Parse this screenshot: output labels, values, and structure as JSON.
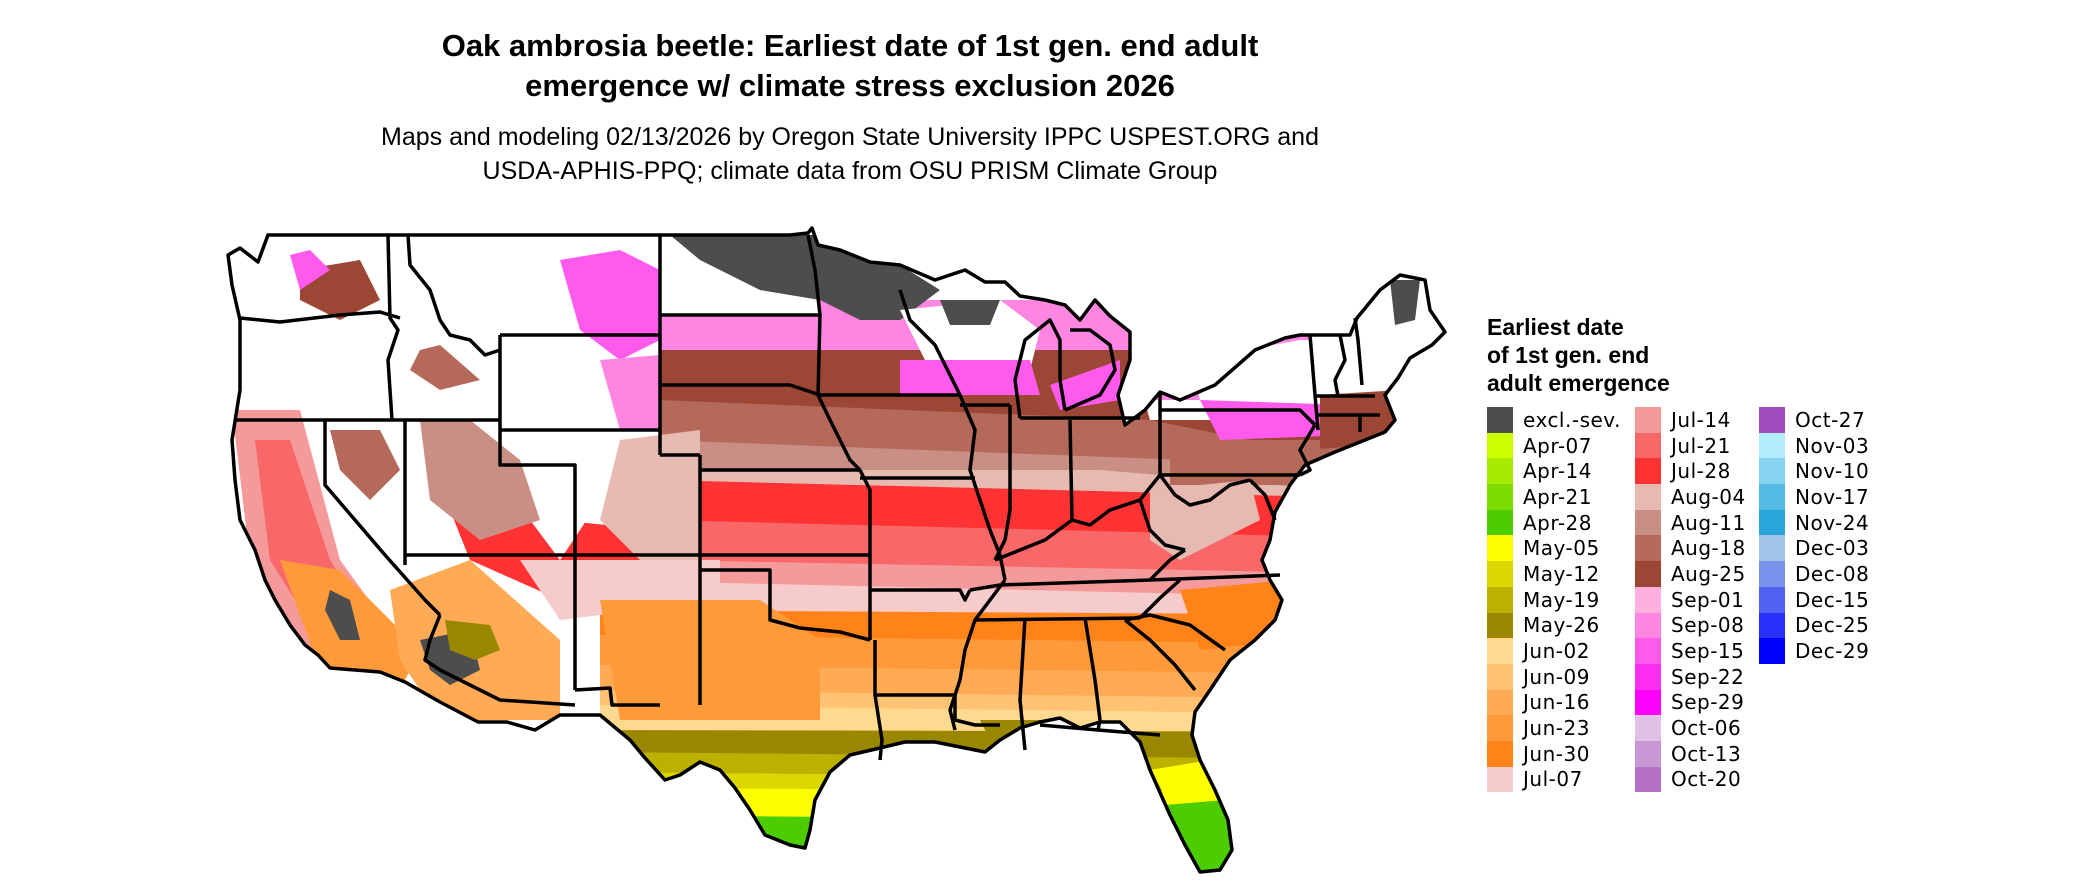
{
  "title": {
    "line1": "Oak ambrosia beetle: Earliest date of 1st gen. end adult",
    "line2": "emergence w/ climate stress exclusion 2026"
  },
  "subtitle": {
    "line1": "Maps and modeling 02/13/2026 by Oregon State University IPPC USPEST.ORG and",
    "line2": "USDA-APHIS-PPQ; climate data from OSU PRISM Climate Group"
  },
  "legend": {
    "title_lines": [
      "Earliest date",
      "of 1st gen. end",
      "adult emergence"
    ],
    "columns": [
      [
        {
          "label": "excl.-sev.",
          "color": "#4d4d4d"
        },
        {
          "label": "Apr-07",
          "color": "#ccff00"
        },
        {
          "label": "Apr-14",
          "color": "#a6ec00"
        },
        {
          "label": "Apr-21",
          "color": "#7fdc00"
        },
        {
          "label": "Apr-28",
          "color": "#4ccd00"
        },
        {
          "label": "May-05",
          "color": "#ffff00"
        },
        {
          "label": "May-12",
          "color": "#dcd700"
        },
        {
          "label": "May-19",
          "color": "#bdb100"
        },
        {
          "label": "May-26",
          "color": "#9a8700"
        },
        {
          "label": "Jun-02",
          "color": "#ffd98f"
        },
        {
          "label": "Jun-09",
          "color": "#ffc373"
        },
        {
          "label": "Jun-16",
          "color": "#ffab55"
        },
        {
          "label": "Jun-23",
          "color": "#ff9a3a"
        },
        {
          "label": "Jun-30",
          "color": "#ff8319"
        },
        {
          "label": "Jul-07",
          "color": "#f5cbcb"
        }
      ],
      [
        {
          "label": "Jul-14",
          "color": "#f59a9a"
        },
        {
          "label": "Jul-21",
          "color": "#f96868"
        },
        {
          "label": "Jul-28",
          "color": "#ff3333"
        },
        {
          "label": "Aug-04",
          "color": "#e6b9b1"
        },
        {
          "label": "Aug-11",
          "color": "#c98f84"
        },
        {
          "label": "Aug-18",
          "color": "#b4695b"
        },
        {
          "label": "Aug-25",
          "color": "#9c4736"
        },
        {
          "label": "Sep-01",
          "color": "#ffb0de"
        },
        {
          "label": "Sep-08",
          "color": "#ff85e3"
        },
        {
          "label": "Sep-15",
          "color": "#ff5aeb"
        },
        {
          "label": "Sep-22",
          "color": "#ff2ef0"
        },
        {
          "label": "Sep-29",
          "color": "#ff00ff"
        },
        {
          "label": "Oct-06",
          "color": "#e0c1e6"
        },
        {
          "label": "Oct-13",
          "color": "#c998d4"
        },
        {
          "label": "Oct-20",
          "color": "#b572c5"
        }
      ],
      [
        {
          "label": "Oct-27",
          "color": "#a04bbb"
        },
        {
          "label": "Nov-03",
          "color": "#b4ecfc"
        },
        {
          "label": "Nov-10",
          "color": "#85d3f1"
        },
        {
          "label": "Nov-17",
          "color": "#57bce5"
        },
        {
          "label": "Nov-24",
          "color": "#28a6dc"
        },
        {
          "label": "Dec-03",
          "color": "#a1c3e9"
        },
        {
          "label": "Dec-08",
          "color": "#7a92ec"
        },
        {
          "label": "Dec-15",
          "color": "#5061f4"
        },
        {
          "label": "Dec-25",
          "color": "#2831f9"
        },
        {
          "label": "Dec-29",
          "color": "#0000ff"
        }
      ]
    ]
  }
}
